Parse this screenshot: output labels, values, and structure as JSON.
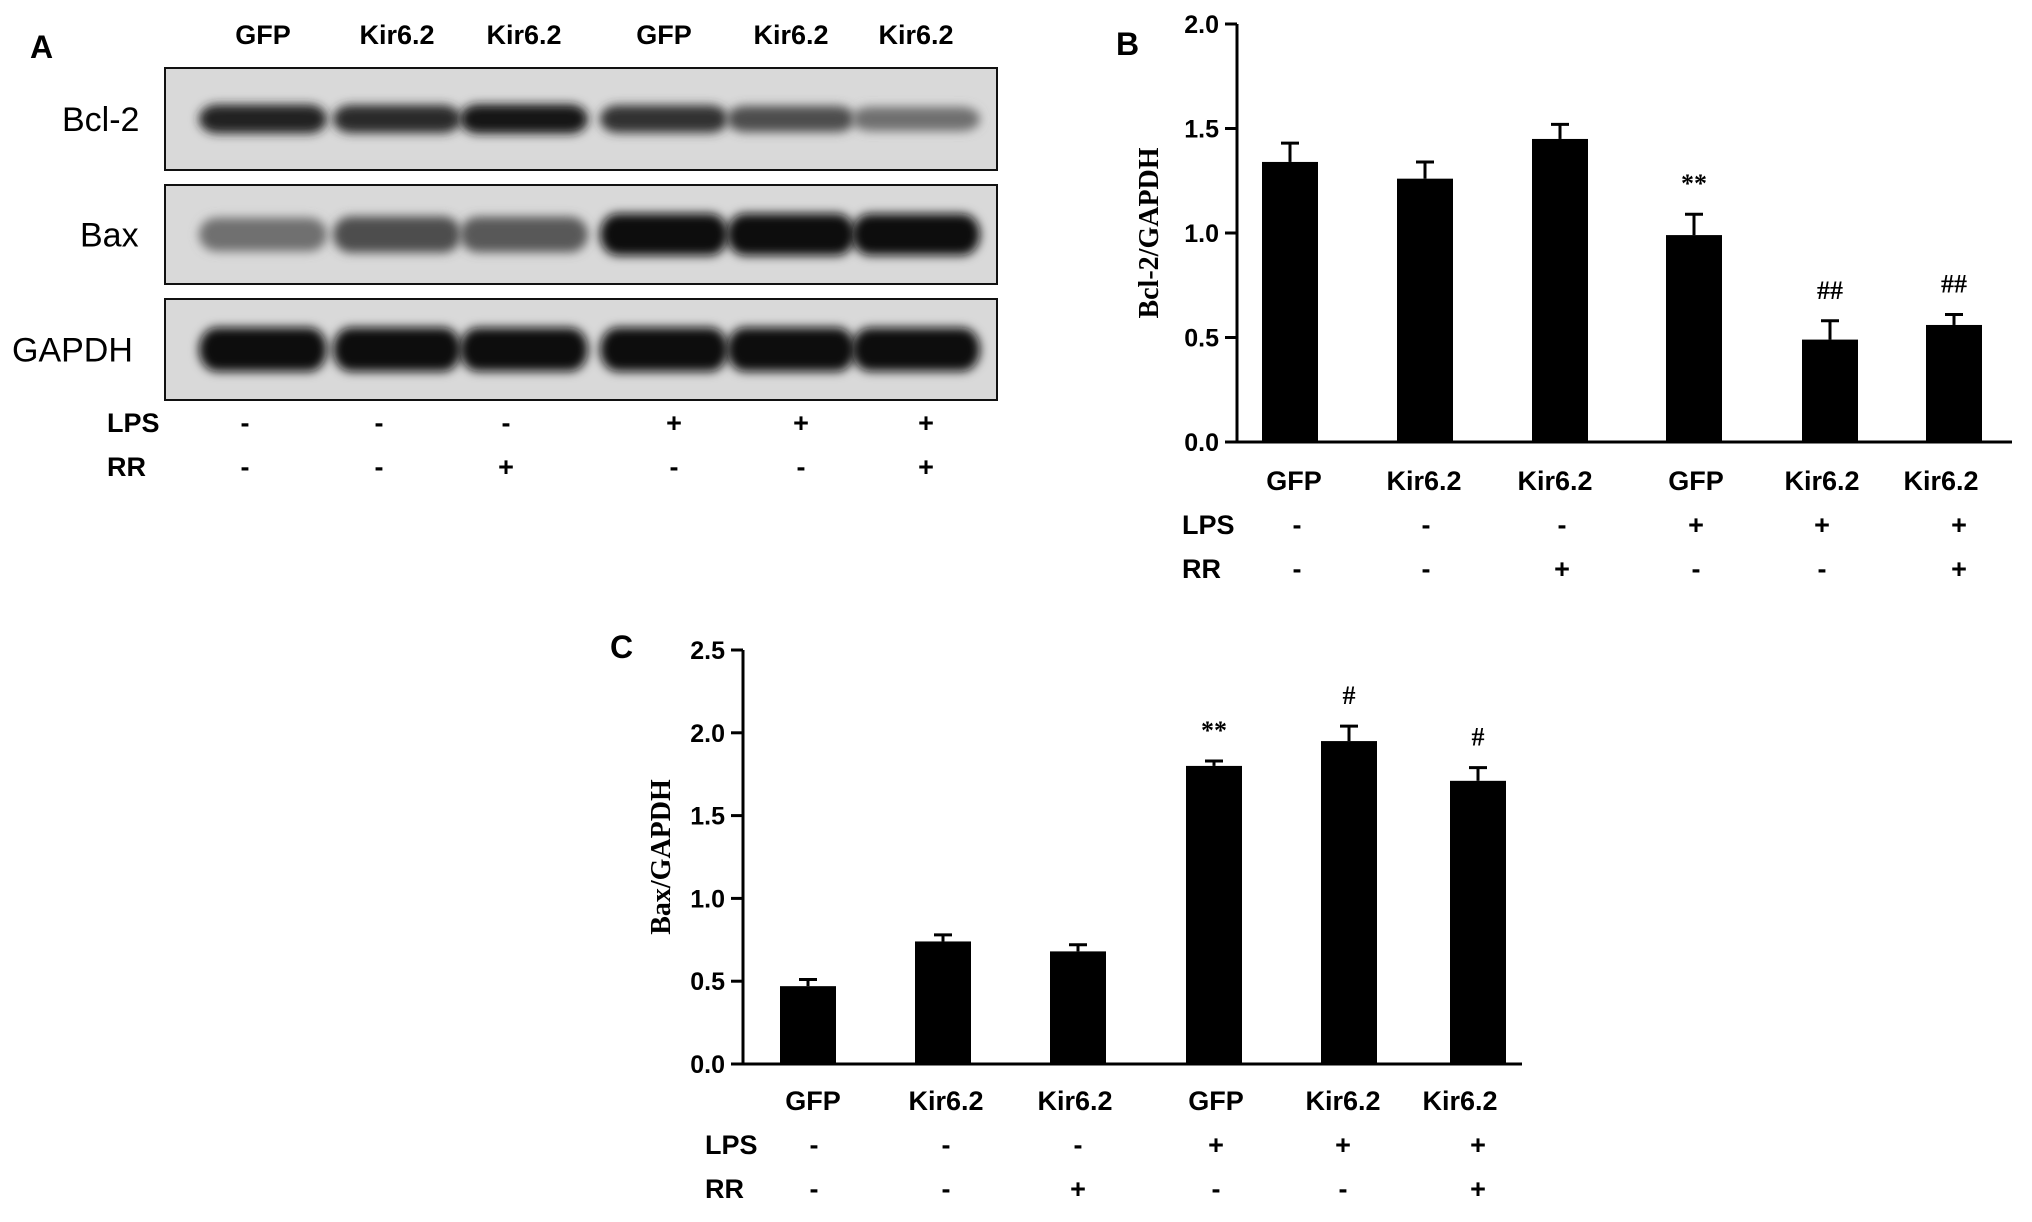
{
  "panels": {
    "a": {
      "letter": "A",
      "lanes": [
        "GFP",
        "Kir6.2",
        "Kir6.2",
        "GFP",
        "Kir6.2",
        "Kir6.2"
      ],
      "blots": [
        {
          "label": "Bcl-2",
          "intensity": [
            0.9,
            0.85,
            0.95,
            0.82,
            0.7,
            0.55
          ]
        },
        {
          "label": "Bax",
          "intensity": [
            0.55,
            0.7,
            0.65,
            1.0,
            1.0,
            0.98
          ]
        },
        {
          "label": "GAPDH",
          "intensity": [
            1.0,
            1.0,
            0.98,
            1.0,
            1.0,
            0.98
          ]
        }
      ],
      "treatments": [
        {
          "label": "LPS",
          "signs": [
            "-",
            "-",
            "-",
            "+",
            "+",
            "+"
          ]
        },
        {
          "label": "RR",
          "signs": [
            "-",
            "-",
            "+",
            "-",
            "-",
            "+"
          ]
        }
      ]
    },
    "b": {
      "letter": "B"
    },
    "c": {
      "letter": "C"
    }
  },
  "chart_data": [
    {
      "panel": "B",
      "type": "bar",
      "categories": [
        "GFP",
        "Kir6.2",
        "Kir6.2",
        "GFP",
        "Kir6.2",
        "Kir6.2"
      ],
      "values": [
        1.34,
        1.26,
        1.45,
        0.99,
        0.49,
        0.56
      ],
      "errors": [
        0.09,
        0.08,
        0.07,
        0.1,
        0.09,
        0.05
      ],
      "annotations": [
        "",
        "",
        "",
        "**",
        "##",
        "##"
      ],
      "ylabel": "Bcl-2/GAPDH",
      "ylim": [
        0,
        2.0
      ],
      "yticks": [
        "0.0",
        "0.5",
        "1.0",
        "1.5",
        "2.0"
      ],
      "treatments": [
        {
          "label": "LPS",
          "signs": [
            "-",
            "-",
            "-",
            "+",
            "+",
            "+"
          ]
        },
        {
          "label": "RR",
          "signs": [
            "-",
            "-",
            "+",
            "-",
            "-",
            "+"
          ]
        }
      ],
      "bar_color": "#000000",
      "grid": false
    },
    {
      "panel": "C",
      "type": "bar",
      "categories": [
        "GFP",
        "Kir6.2",
        "Kir6.2",
        "GFP",
        "Kir6.2",
        "Kir6.2"
      ],
      "values": [
        0.47,
        0.74,
        0.68,
        1.8,
        1.95,
        1.71
      ],
      "errors": [
        0.04,
        0.04,
        0.04,
        0.03,
        0.09,
        0.08
      ],
      "annotations": [
        "",
        "",
        "",
        "**",
        "#",
        "#"
      ],
      "ylabel": "Bax/GAPDH",
      "ylim": [
        0,
        2.5
      ],
      "yticks": [
        "0.0",
        "0.5",
        "1.0",
        "1.5",
        "2.0",
        "2.5"
      ],
      "treatments": [
        {
          "label": "LPS",
          "signs": [
            "-",
            "-",
            "-",
            "+",
            "+",
            "+"
          ]
        },
        {
          "label": "RR",
          "signs": [
            "-",
            "-",
            "+",
            "-",
            "-",
            "+"
          ]
        }
      ],
      "bar_color": "#000000",
      "grid": false
    }
  ]
}
